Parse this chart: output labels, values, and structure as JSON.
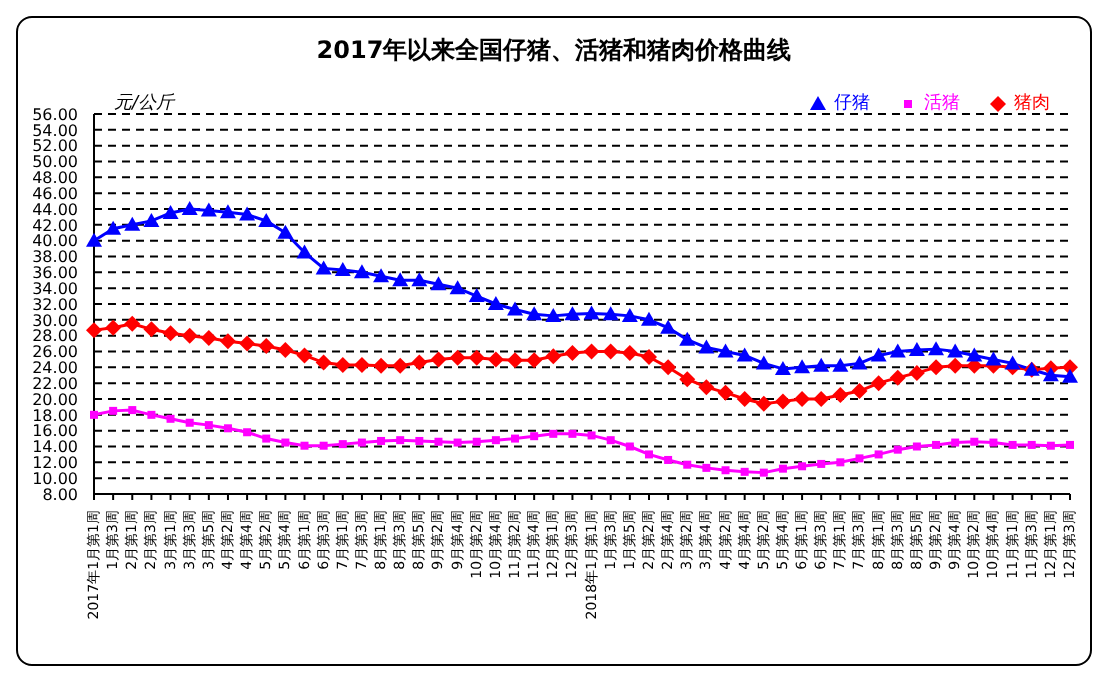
{
  "chart_data": {
    "type": "line",
    "title": "2017年以来全国仔猪、活猪和猪肉价格曲线",
    "ylabel": "元/公斤",
    "categories": [
      "2017年1月第1周",
      "1月第3周",
      "2月第1周",
      "2月第3周",
      "3月第1周",
      "3月第3周",
      "3月第5周",
      "4月第2周",
      "4月第4周",
      "5月第2周",
      "5月第4周",
      "6月第1周",
      "6月第3周",
      "7月第1周",
      "7月第3周",
      "8月第1周",
      "8月第3周",
      "8月第5周",
      "9月第2周",
      "9月第4周",
      "10月第2周",
      "10月第4周",
      "11月第2周",
      "11月第4周",
      "12月第1周",
      "12月第3周",
      "2018年1月第1周",
      "1月第3周",
      "1月第5周",
      "2月第2周",
      "2月第4周",
      "3月第2周",
      "3月第4周",
      "4月第2周",
      "4月第4周",
      "5月第2周",
      "5月第4周",
      "6月第1周",
      "6月第3周",
      "7月第1周",
      "7月第3周",
      "8月第1周",
      "8月第3周",
      "8月第5周",
      "9月第2周",
      "9月第4周",
      "10月第2周",
      "10月第4周",
      "11月第1周",
      "11月第3周",
      "12月第1周",
      "12月第3周"
    ],
    "series": [
      {
        "name": "仔猪",
        "color": "#0000ff",
        "marker": "triangle",
        "values": [
          40,
          41.5,
          42,
          42.5,
          43.5,
          44,
          43.8,
          43.6,
          43.3,
          42.5,
          41,
          38.5,
          36.5,
          36.3,
          36,
          35.5,
          35,
          35,
          34.5,
          34,
          33,
          32,
          31.3,
          30.7,
          30.5,
          30.7,
          30.8,
          30.7,
          30.5,
          30,
          29,
          27.5,
          26.5,
          26,
          25.5,
          24.5,
          23.8,
          24,
          24.2,
          24.2,
          24.5,
          25.5,
          26,
          26.2,
          26.3,
          26,
          25.5,
          25,
          24.5,
          23.7,
          23,
          22.8
        ]
      },
      {
        "name": "活猪",
        "color": "#ff00ff",
        "marker": "square",
        "values": [
          18,
          18.5,
          18.6,
          18,
          17.5,
          17,
          16.7,
          16.3,
          15.8,
          15,
          14.5,
          14.1,
          14.1,
          14.3,
          14.5,
          14.7,
          14.8,
          14.7,
          14.6,
          14.5,
          14.6,
          14.8,
          15,
          15.3,
          15.6,
          15.6,
          15.4,
          14.8,
          14,
          13,
          12.3,
          11.7,
          11.3,
          11,
          10.8,
          10.7,
          11.2,
          11.5,
          11.8,
          12,
          12.5,
          13,
          13.6,
          14,
          14.2,
          14.5,
          14.6,
          14.5,
          14.2,
          14.2,
          14.1,
          14.2
        ]
      },
      {
        "name": "猪肉",
        "color": "#ff0000",
        "marker": "diamond",
        "values": [
          28.7,
          29,
          29.5,
          28.8,
          28.3,
          28,
          27.7,
          27.3,
          27,
          26.7,
          26.2,
          25.5,
          24.6,
          24.3,
          24.3,
          24.2,
          24.2,
          24.6,
          25,
          25.2,
          25.2,
          25,
          24.9,
          24.9,
          25.4,
          25.8,
          26,
          26,
          25.8,
          25.3,
          24,
          22.5,
          21.5,
          20.8,
          20,
          19.4,
          19.7,
          20,
          20,
          20.5,
          21,
          22,
          22.7,
          23.3,
          24,
          24.2,
          24.2,
          24.2,
          24,
          23.7,
          23.9,
          24
        ]
      }
    ],
    "ylim": [
      8,
      56
    ],
    "yticks": [
      {
        "value": 8,
        "label": "8.00"
      },
      {
        "value": 10,
        "label": "10.00"
      },
      {
        "value": 12,
        "label": "12.00"
      },
      {
        "value": 14,
        "label": "14.00"
      },
      {
        "value": 16,
        "label": "16.00"
      },
      {
        "value": 18,
        "label": "18.00"
      },
      {
        "value": 20,
        "label": "20.00"
      },
      {
        "value": 22,
        "label": "22.00"
      },
      {
        "value": 24,
        "label": "24.00"
      },
      {
        "value": 26,
        "label": "26.00"
      },
      {
        "value": 28,
        "label": "28.00"
      },
      {
        "value": 30,
        "label": "30.00"
      },
      {
        "value": 32,
        "label": "32.00"
      },
      {
        "value": 34,
        "label": "34.00"
      },
      {
        "value": 36,
        "label": "36.00"
      },
      {
        "value": 38,
        "label": "38.00"
      },
      {
        "value": 40,
        "label": "40.00"
      },
      {
        "value": 42,
        "label": "42.00"
      },
      {
        "value": 44,
        "label": "44.00"
      },
      {
        "value": 46,
        "label": "46.00"
      },
      {
        "value": 48,
        "label": "48.00"
      },
      {
        "value": 50,
        "label": "50.00"
      },
      {
        "value": 52,
        "label": "52.00"
      },
      {
        "value": 54,
        "label": "54.00"
      },
      {
        "value": 56,
        "label": "56.00"
      }
    ],
    "grid": "y",
    "legend": "top right",
    "line_style": "solid"
  }
}
